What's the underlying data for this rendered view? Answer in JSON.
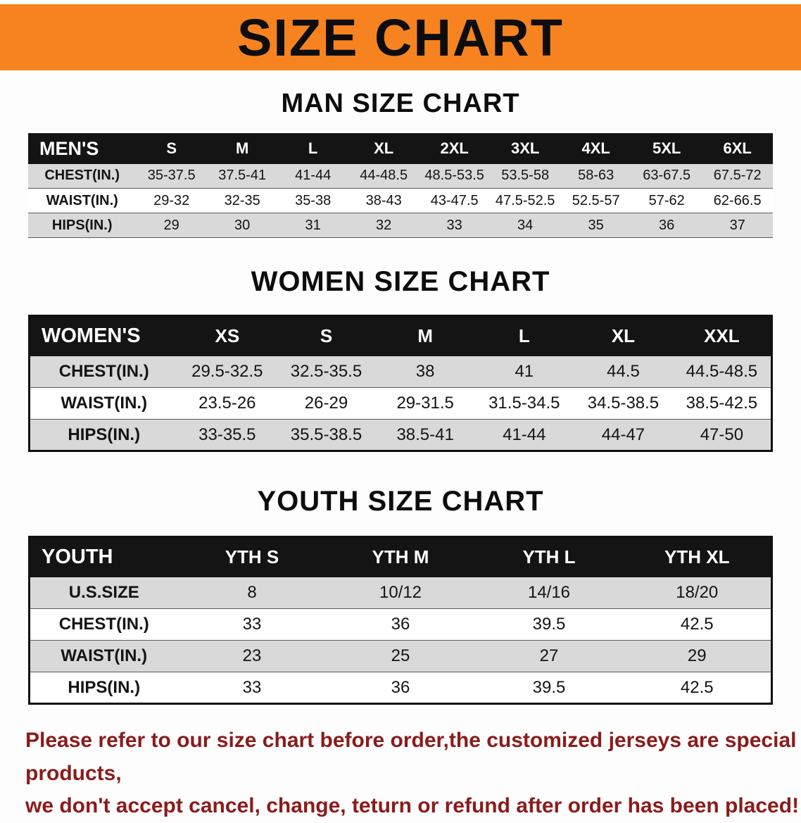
{
  "colors": {
    "accent": "#f6831f",
    "footer": "#8b1b1b",
    "stripe": "#d9d9d9",
    "header_bar": "#141414"
  },
  "banner": {
    "title": "SIZE CHART"
  },
  "men": {
    "heading": "MAN SIZE CHART",
    "table": {
      "header": [
        "MEN'S",
        "S",
        "M",
        "L",
        "XL",
        "2XL",
        "3XL",
        "4XL",
        "5XL",
        "6XL"
      ],
      "rows": [
        [
          "CHEST(IN.)",
          "35-37.5",
          "37.5-41",
          "41-44",
          "44-48.5",
          "48.5-53.5",
          "53.5-58",
          "58-63",
          "63-67.5",
          "67.5-72"
        ],
        [
          "WAIST(IN.)",
          "29-32",
          "32-35",
          "35-38",
          "38-43",
          "43-47.5",
          "47.5-52.5",
          "52.5-57",
          "57-62",
          "62-66.5"
        ],
        [
          "HIPS(IN.)",
          "29",
          "30",
          "31",
          "32",
          "33",
          "34",
          "35",
          "36",
          "37"
        ]
      ]
    }
  },
  "women": {
    "heading": "WOMEN SIZE CHART",
    "table": {
      "header": [
        "WOMEN'S",
        "XS",
        "S",
        "M",
        "L",
        "XL",
        "XXL"
      ],
      "rows": [
        [
          "CHEST(IN.)",
          "29.5-32.5",
          "32.5-35.5",
          "38",
          "41",
          "44.5",
          "44.5-48.5"
        ],
        [
          "WAIST(IN.)",
          "23.5-26",
          "26-29",
          "29-31.5",
          "31.5-34.5",
          "34.5-38.5",
          "38.5-42.5"
        ],
        [
          "HIPS(IN.)",
          "33-35.5",
          "35.5-38.5",
          "38.5-41",
          "41-44",
          "44-47",
          "47-50"
        ]
      ]
    }
  },
  "youth": {
    "heading": "YOUTH SIZE CHART",
    "table": {
      "header": [
        "YOUTH",
        "YTH S",
        "YTH M",
        "YTH L",
        "YTH XL"
      ],
      "rows": [
        [
          "U.S.SIZE",
          "8",
          "10/12",
          "14/16",
          "18/20"
        ],
        [
          "CHEST(IN.)",
          "33",
          "36",
          "39.5",
          "42.5"
        ],
        [
          "WAIST(IN.)",
          "23",
          "25",
          "27",
          "29"
        ],
        [
          "HIPS(IN.)",
          "33",
          "36",
          "39.5",
          "42.5"
        ]
      ]
    }
  },
  "footer": {
    "line1": "Please refer to our size chart before order,the customized jerseys are special products,",
    "line2": "we don't accept cancel, change, teturn or refund after order has been placed!"
  }
}
